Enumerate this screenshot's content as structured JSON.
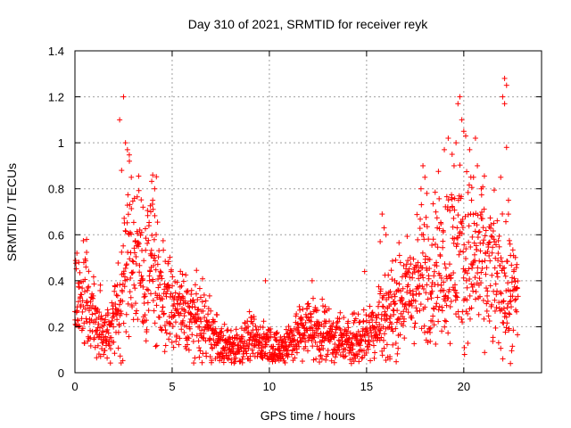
{
  "chart_data": {
    "type": "scatter",
    "title": "Day 310 of 2021, SRMTID for receiver reyk",
    "xlabel": "GPS time / hours",
    "ylabel": "SRMTID / TECUs",
    "xlim": [
      0,
      24
    ],
    "ylim": [
      0,
      1.4
    ],
    "xticks": [
      0,
      5,
      10,
      15,
      20
    ],
    "xtick_labels": [
      "0",
      "5",
      "10",
      "15",
      "20"
    ],
    "yticks": [
      0,
      0.2,
      0.4,
      0.6,
      0.8,
      1,
      1.2,
      1.4
    ],
    "ytick_labels": [
      "0",
      "0.2",
      "0.4",
      "0.6",
      "0.8",
      "1",
      "1.2",
      "1.4"
    ],
    "grid": true,
    "marker": "+",
    "color": "#ff0000",
    "series": [
      {
        "name": "SRMTID",
        "trend": {
          "x": [
            0,
            0.5,
            1.0,
            1.5,
            2.0,
            2.5,
            2.8,
            3.2,
            3.6,
            4.0,
            4.4,
            5.0,
            6.0,
            7.0,
            7.5,
            8.0,
            9.0,
            10.0,
            10.5,
            11.0,
            12.0,
            13.0,
            14.0,
            15.0,
            16.0,
            17.0,
            17.5,
            18.0,
            18.5,
            19.0,
            19.5,
            20.0,
            20.5,
            21.0,
            21.5,
            22.0,
            22.5,
            22.8
          ],
          "y": [
            0.28,
            0.32,
            0.22,
            0.17,
            0.22,
            0.38,
            0.55,
            0.5,
            0.42,
            0.5,
            0.35,
            0.28,
            0.24,
            0.18,
            0.12,
            0.11,
            0.14,
            0.13,
            0.09,
            0.14,
            0.2,
            0.17,
            0.13,
            0.17,
            0.26,
            0.33,
            0.38,
            0.42,
            0.46,
            0.48,
            0.52,
            0.5,
            0.5,
            0.46,
            0.42,
            0.38,
            0.34,
            0.3
          ]
        },
        "outliers": [
          [
            2.3,
            1.1
          ],
          [
            2.5,
            1.2
          ],
          [
            2.6,
            1.0
          ],
          [
            2.7,
            0.97
          ],
          [
            2.8,
            0.92
          ],
          [
            2.4,
            0.88
          ],
          [
            2.9,
            0.85
          ],
          [
            4.0,
            0.86
          ],
          [
            4.1,
            0.8
          ],
          [
            4.0,
            0.75
          ],
          [
            3.9,
            0.7
          ],
          [
            3.5,
            0.72
          ],
          [
            0.1,
            0.52
          ],
          [
            0.6,
            0.58
          ],
          [
            0.2,
            0.48
          ],
          [
            15.8,
            0.69
          ],
          [
            15.9,
            0.63
          ],
          [
            16.0,
            0.6
          ],
          [
            15.7,
            0.57
          ],
          [
            17.9,
            0.9
          ],
          [
            18.0,
            0.85
          ],
          [
            18.1,
            0.78
          ],
          [
            17.8,
            0.8
          ],
          [
            19.2,
            1.02
          ],
          [
            19.0,
            0.97
          ],
          [
            19.4,
            0.95
          ],
          [
            19.5,
            0.9
          ],
          [
            19.8,
            1.2
          ],
          [
            19.7,
            1.17
          ],
          [
            19.9,
            1.1
          ],
          [
            20.0,
            1.05
          ],
          [
            20.1,
            1.03
          ],
          [
            19.6,
            1.0
          ],
          [
            20.3,
            0.97
          ],
          [
            20.6,
            1.02
          ],
          [
            20.7,
            0.9
          ],
          [
            20.5,
            0.85
          ],
          [
            20.9,
            0.8
          ],
          [
            20.4,
            0.75
          ],
          [
            22.1,
            1.28
          ],
          [
            22.2,
            1.25
          ],
          [
            22.0,
            1.2
          ],
          [
            22.1,
            1.17
          ],
          [
            22.2,
            0.98
          ],
          [
            21.9,
            0.85
          ],
          [
            22.3,
            0.75
          ],
          [
            12.2,
            0.4
          ],
          [
            9.8,
            0.4
          ],
          [
            14.9,
            0.44
          ],
          [
            22.4,
            0.04
          ],
          [
            16.2,
            0.06
          ],
          [
            10.3,
            0.05
          ]
        ]
      }
    ]
  }
}
